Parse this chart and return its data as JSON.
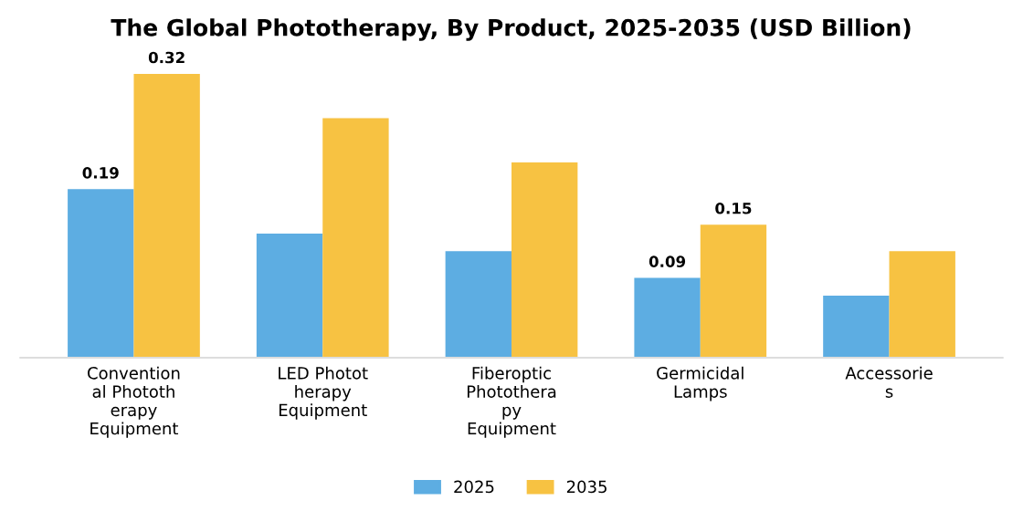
{
  "chart_data": {
    "type": "bar",
    "title": "The Global Phototherapy, By Product, 2025-2035 (USD Billion)",
    "categories": [
      "Convention\nal Phototh\nerapy\nEquipment",
      "LED Photot\nherapy\nEquipment",
      "Fiberoptic\nPhotothera\npy\nEquipment",
      "Germicidal\nLamps",
      "Accessorie\ns"
    ],
    "series": [
      {
        "name": "2025",
        "color": "#5dade2",
        "values": [
          0.19,
          0.14,
          0.12,
          0.09,
          0.07
        ],
        "value_labels": [
          "0.19",
          null,
          null,
          "0.09",
          null
        ]
      },
      {
        "name": "2035",
        "color": "#f7c242",
        "values": [
          0.32,
          0.27,
          0.22,
          0.15,
          0.12
        ],
        "value_labels": [
          "0.32",
          null,
          null,
          "0.15",
          null
        ]
      }
    ],
    "legend": "bottom",
    "grid": false,
    "tick_labels": "x"
  }
}
